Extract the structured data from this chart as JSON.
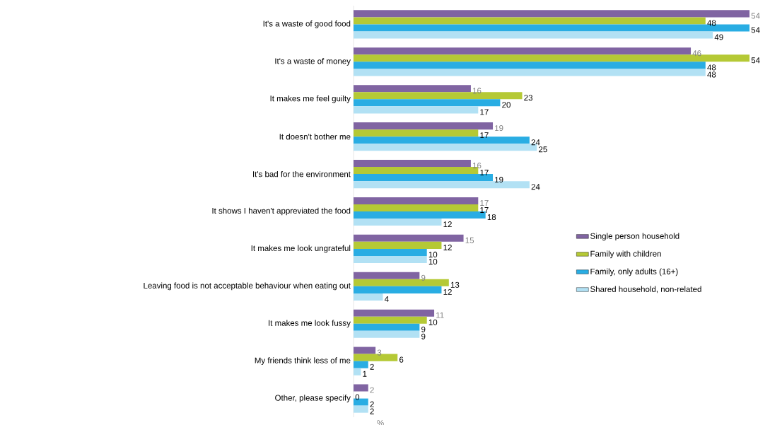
{
  "chart_data": {
    "type": "bar",
    "orientation": "horizontal",
    "xlabel": "%",
    "categories": [
      "It's a waste of good food",
      "It's a waste of money",
      "It makes me feel guilty",
      "It doesn't bother me",
      "It's bad for the environment",
      "It shows I haven't appreviated the food",
      "It makes me look ungrateful",
      "Leaving food is not acceptable behaviour when eating out",
      "It makes me look fussy",
      "My friends think less of me",
      "Other, please specify"
    ],
    "series": [
      {
        "name": "Single person household",
        "color": "#8064a2",
        "values": [
          54,
          46,
          16,
          19,
          16,
          17,
          15,
          9,
          11,
          3,
          2
        ]
      },
      {
        "name": "Family with children",
        "color": "#b5c935",
        "values": [
          48,
          54,
          23,
          17,
          17,
          17,
          12,
          13,
          10,
          6,
          0
        ]
      },
      {
        "name": "Family, only adults (16+)",
        "color": "#29ade3",
        "values": [
          54,
          48,
          20,
          24,
          19,
          18,
          10,
          12,
          9,
          2,
          2
        ]
      },
      {
        "name": "Shared household, non-related",
        "color": "#b2e1f4",
        "values": [
          49,
          48,
          17,
          25,
          24,
          12,
          10,
          4,
          9,
          1,
          2
        ]
      }
    ],
    "data_labels": true,
    "legend": "right"
  }
}
